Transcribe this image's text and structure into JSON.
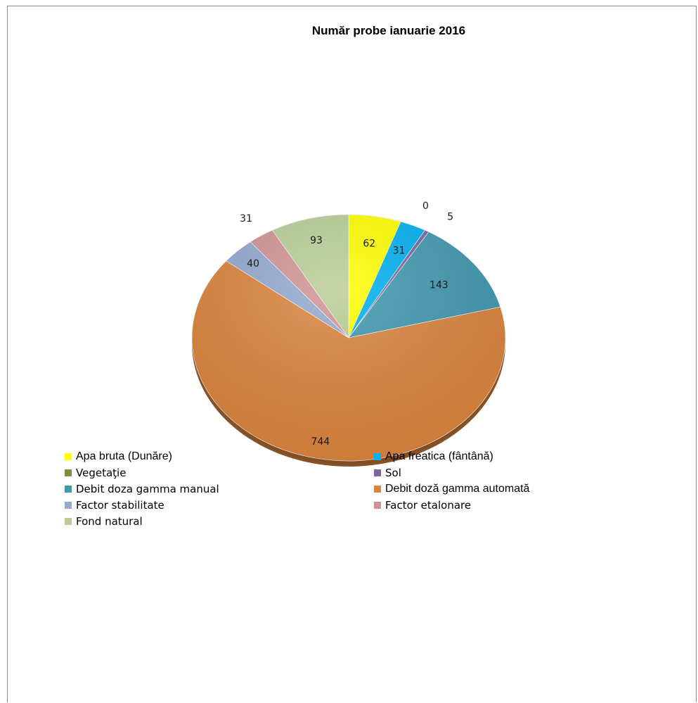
{
  "chart_data": {
    "type": "pie",
    "title": "Număr probe  ianuarie  2016",
    "labels": [
      "Apa bruta (Dunăre)",
      "Apa freatica (fântână)",
      "Vegetaţie",
      "Sol",
      "Debit  doza gamma manual",
      "Debit doză gamma automată",
      "Factor stabilitate",
      "Factor etalonare",
      "Fond natural"
    ],
    "values": [
      62,
      31,
      0,
      5,
      143,
      744,
      40,
      31,
      93
    ],
    "value_labels": [
      "62",
      "31",
      "0",
      "5",
      "143",
      "744",
      "40",
      "31",
      "93"
    ],
    "colors": [
      "#ffff00",
      "#00b0f0",
      "#77933c",
      "#8064a2",
      "#4198af",
      "#db843d",
      "#93a9cf",
      "#d19392",
      "#b9cd96"
    ],
    "legend_placement": "bottom"
  }
}
